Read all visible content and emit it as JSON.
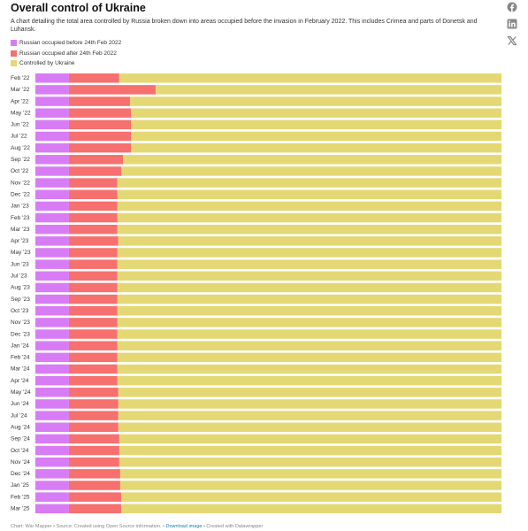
{
  "chart_data": {
    "type": "stacked-bar-horizontal",
    "title": "Overall control of Ukraine",
    "subtitle": "A chart detailing the total area controlled by Russia broken down into areas occupied before the invasion in February 2022. This includes Crimea and parts of Donetsk and Luhansk.",
    "categories": [
      "Feb '22",
      "Mar '22",
      "Apr '22",
      "May '22",
      "Jun '22",
      "Jul '22",
      "Aug '22",
      "Sep '22",
      "Oct '22",
      "Nov '22",
      "Dec '22",
      "Jan '23",
      "Feb '23",
      "Mar '23",
      "Apr '23",
      "May '23",
      "Jun '23",
      "Jul '23",
      "Aug '23",
      "Sep '23",
      "Oct '23",
      "Nov '23",
      "Dec '23",
      "Jan '24",
      "Feb '24",
      "Mar '24",
      "Apr '24",
      "May '24",
      "Jun '24",
      "Jul '24",
      "Aug '24",
      "Sep '24",
      "Oct '24",
      "Nov '24",
      "Dec '24",
      "Jan '25",
      "Feb '25",
      "Mar '25"
    ],
    "series": [
      {
        "name": "Russian occupied before 24th Feb 2022",
        "color": "#d87cf5",
        "values": [
          7.2,
          7.2,
          7.2,
          7.2,
          7.2,
          7.2,
          7.2,
          7.2,
          7.2,
          7.2,
          7.2,
          7.2,
          7.2,
          7.2,
          7.2,
          7.2,
          7.2,
          7.2,
          7.2,
          7.2,
          7.2,
          7.2,
          7.2,
          7.2,
          7.2,
          7.2,
          7.2,
          7.2,
          7.2,
          7.2,
          7.2,
          7.2,
          7.2,
          7.2,
          7.2,
          7.2,
          7.2,
          7.2
        ]
      },
      {
        "name": "Russian occupied after 24th Feb 2022",
        "color": "#f5706e",
        "values": [
          10.8,
          18.6,
          13.1,
          13.3,
          13.3,
          13.3,
          13.3,
          11.6,
          11.2,
          10.4,
          10.4,
          10.4,
          10.4,
          10.4,
          10.6,
          10.4,
          10.4,
          10.4,
          10.4,
          10.4,
          10.4,
          10.4,
          10.4,
          10.4,
          10.4,
          10.4,
          10.4,
          10.6,
          10.6,
          10.6,
          10.6,
          10.8,
          10.8,
          10.8,
          11.0,
          11.0,
          11.2,
          11.2
        ]
      },
      {
        "name": "Controlled by Ukraine",
        "color": "#e4d874",
        "values": [
          82.0,
          74.2,
          79.7,
          79.5,
          79.5,
          79.5,
          79.5,
          81.2,
          81.6,
          82.4,
          82.4,
          82.4,
          82.4,
          82.4,
          82.2,
          82.4,
          82.4,
          82.4,
          82.4,
          82.4,
          82.4,
          82.4,
          82.4,
          82.4,
          82.4,
          82.4,
          82.4,
          82.2,
          82.2,
          82.2,
          82.2,
          82.0,
          82.0,
          82.0,
          81.8,
          81.8,
          81.6,
          81.6
        ]
      }
    ],
    "footer": {
      "credit": "Chart: War Mapper",
      "source": "Source: Created using Open Source information.",
      "download": "Download image",
      "created": "Created with Datawrapper"
    }
  }
}
